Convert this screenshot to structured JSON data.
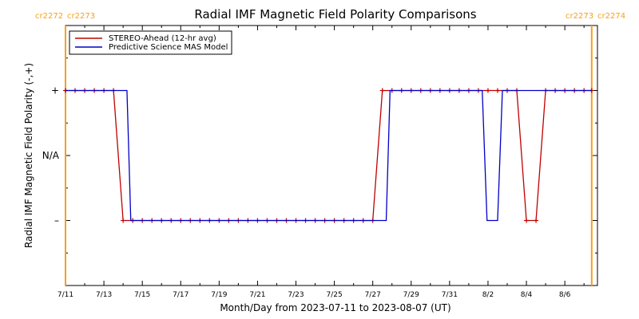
{
  "chart_data": {
    "type": "line",
    "title": "Radial IMF Magnetic Field Polarity Comparisons",
    "xlabel": "Month/Day from 2023-07-11 to 2023-08-07 (UT)",
    "ylabel": "Radial IMF Magnetic Field Polarity (-,+)",
    "y_tick_labels": [
      "+",
      "N/A",
      "–"
    ],
    "y_values_meaning": {
      "1": "+",
      "0": "N/A",
      "-1": "–"
    },
    "ylim": [
      -2,
      2
    ],
    "xlim_days_from_jul11": [
      0,
      27.7
    ],
    "x_tick_labels": [
      "7/11",
      "7/13",
      "7/15",
      "7/17",
      "7/19",
      "7/21",
      "7/23",
      "7/25",
      "7/27",
      "7/29",
      "7/31",
      "8/2",
      "8/4",
      "8/6"
    ],
    "carrington_markers": [
      {
        "label_left": "cr2272",
        "label_right": "cr2273",
        "x": 0.0
      },
      {
        "label_left": "cr2273",
        "label_right": "cr2274",
        "x": 27.4
      }
    ],
    "legend_position": "top-left",
    "series": [
      {
        "name": "STEREO-Ahead (12-hr avg)",
        "color": "#c00000",
        "marker": "plus",
        "x": [
          0.0,
          0.5,
          1.0,
          1.5,
          2.0,
          2.5,
          3.0,
          3.5,
          4.0,
          4.5,
          5.0,
          5.5,
          6.0,
          6.5,
          7.0,
          7.5,
          8.0,
          8.5,
          9.0,
          9.5,
          10.0,
          10.5,
          11.0,
          11.5,
          12.0,
          12.5,
          13.0,
          13.5,
          14.0,
          14.5,
          15.0,
          15.5,
          16.0,
          16.5,
          17.0,
          17.5,
          18.0,
          18.5,
          19.0,
          19.5,
          20.0,
          20.5,
          21.0,
          21.5,
          22.0,
          22.5,
          23.0,
          23.5,
          24.0,
          24.5,
          25.0,
          25.5,
          26.0,
          26.5,
          27.0,
          27.4
        ],
        "y": [
          1,
          1,
          1,
          1,
          1,
          1,
          -1,
          -1,
          -1,
          -1,
          -1,
          -1,
          -1,
          -1,
          -1,
          -1,
          -1,
          -1,
          -1,
          -1,
          -1,
          -1,
          -1,
          -1,
          -1,
          -1,
          -1,
          -1,
          -1,
          -1,
          -1,
          -1,
          -1,
          1,
          1,
          1,
          1,
          1,
          1,
          1,
          1,
          1,
          1,
          1,
          1,
          1,
          1,
          1,
          -1,
          -1,
          1,
          1,
          1,
          1,
          1,
          1
        ]
      },
      {
        "name": "Predictive Science MAS Model",
        "color": "#0000c8",
        "marker": "none",
        "x": [
          0.0,
          3.2,
          3.4,
          16.7,
          16.9,
          21.7,
          21.95,
          22.5,
          22.75,
          27.4
        ],
        "y": [
          1,
          1,
          -1,
          -1,
          1,
          1,
          -1,
          -1,
          1,
          1
        ]
      }
    ]
  }
}
